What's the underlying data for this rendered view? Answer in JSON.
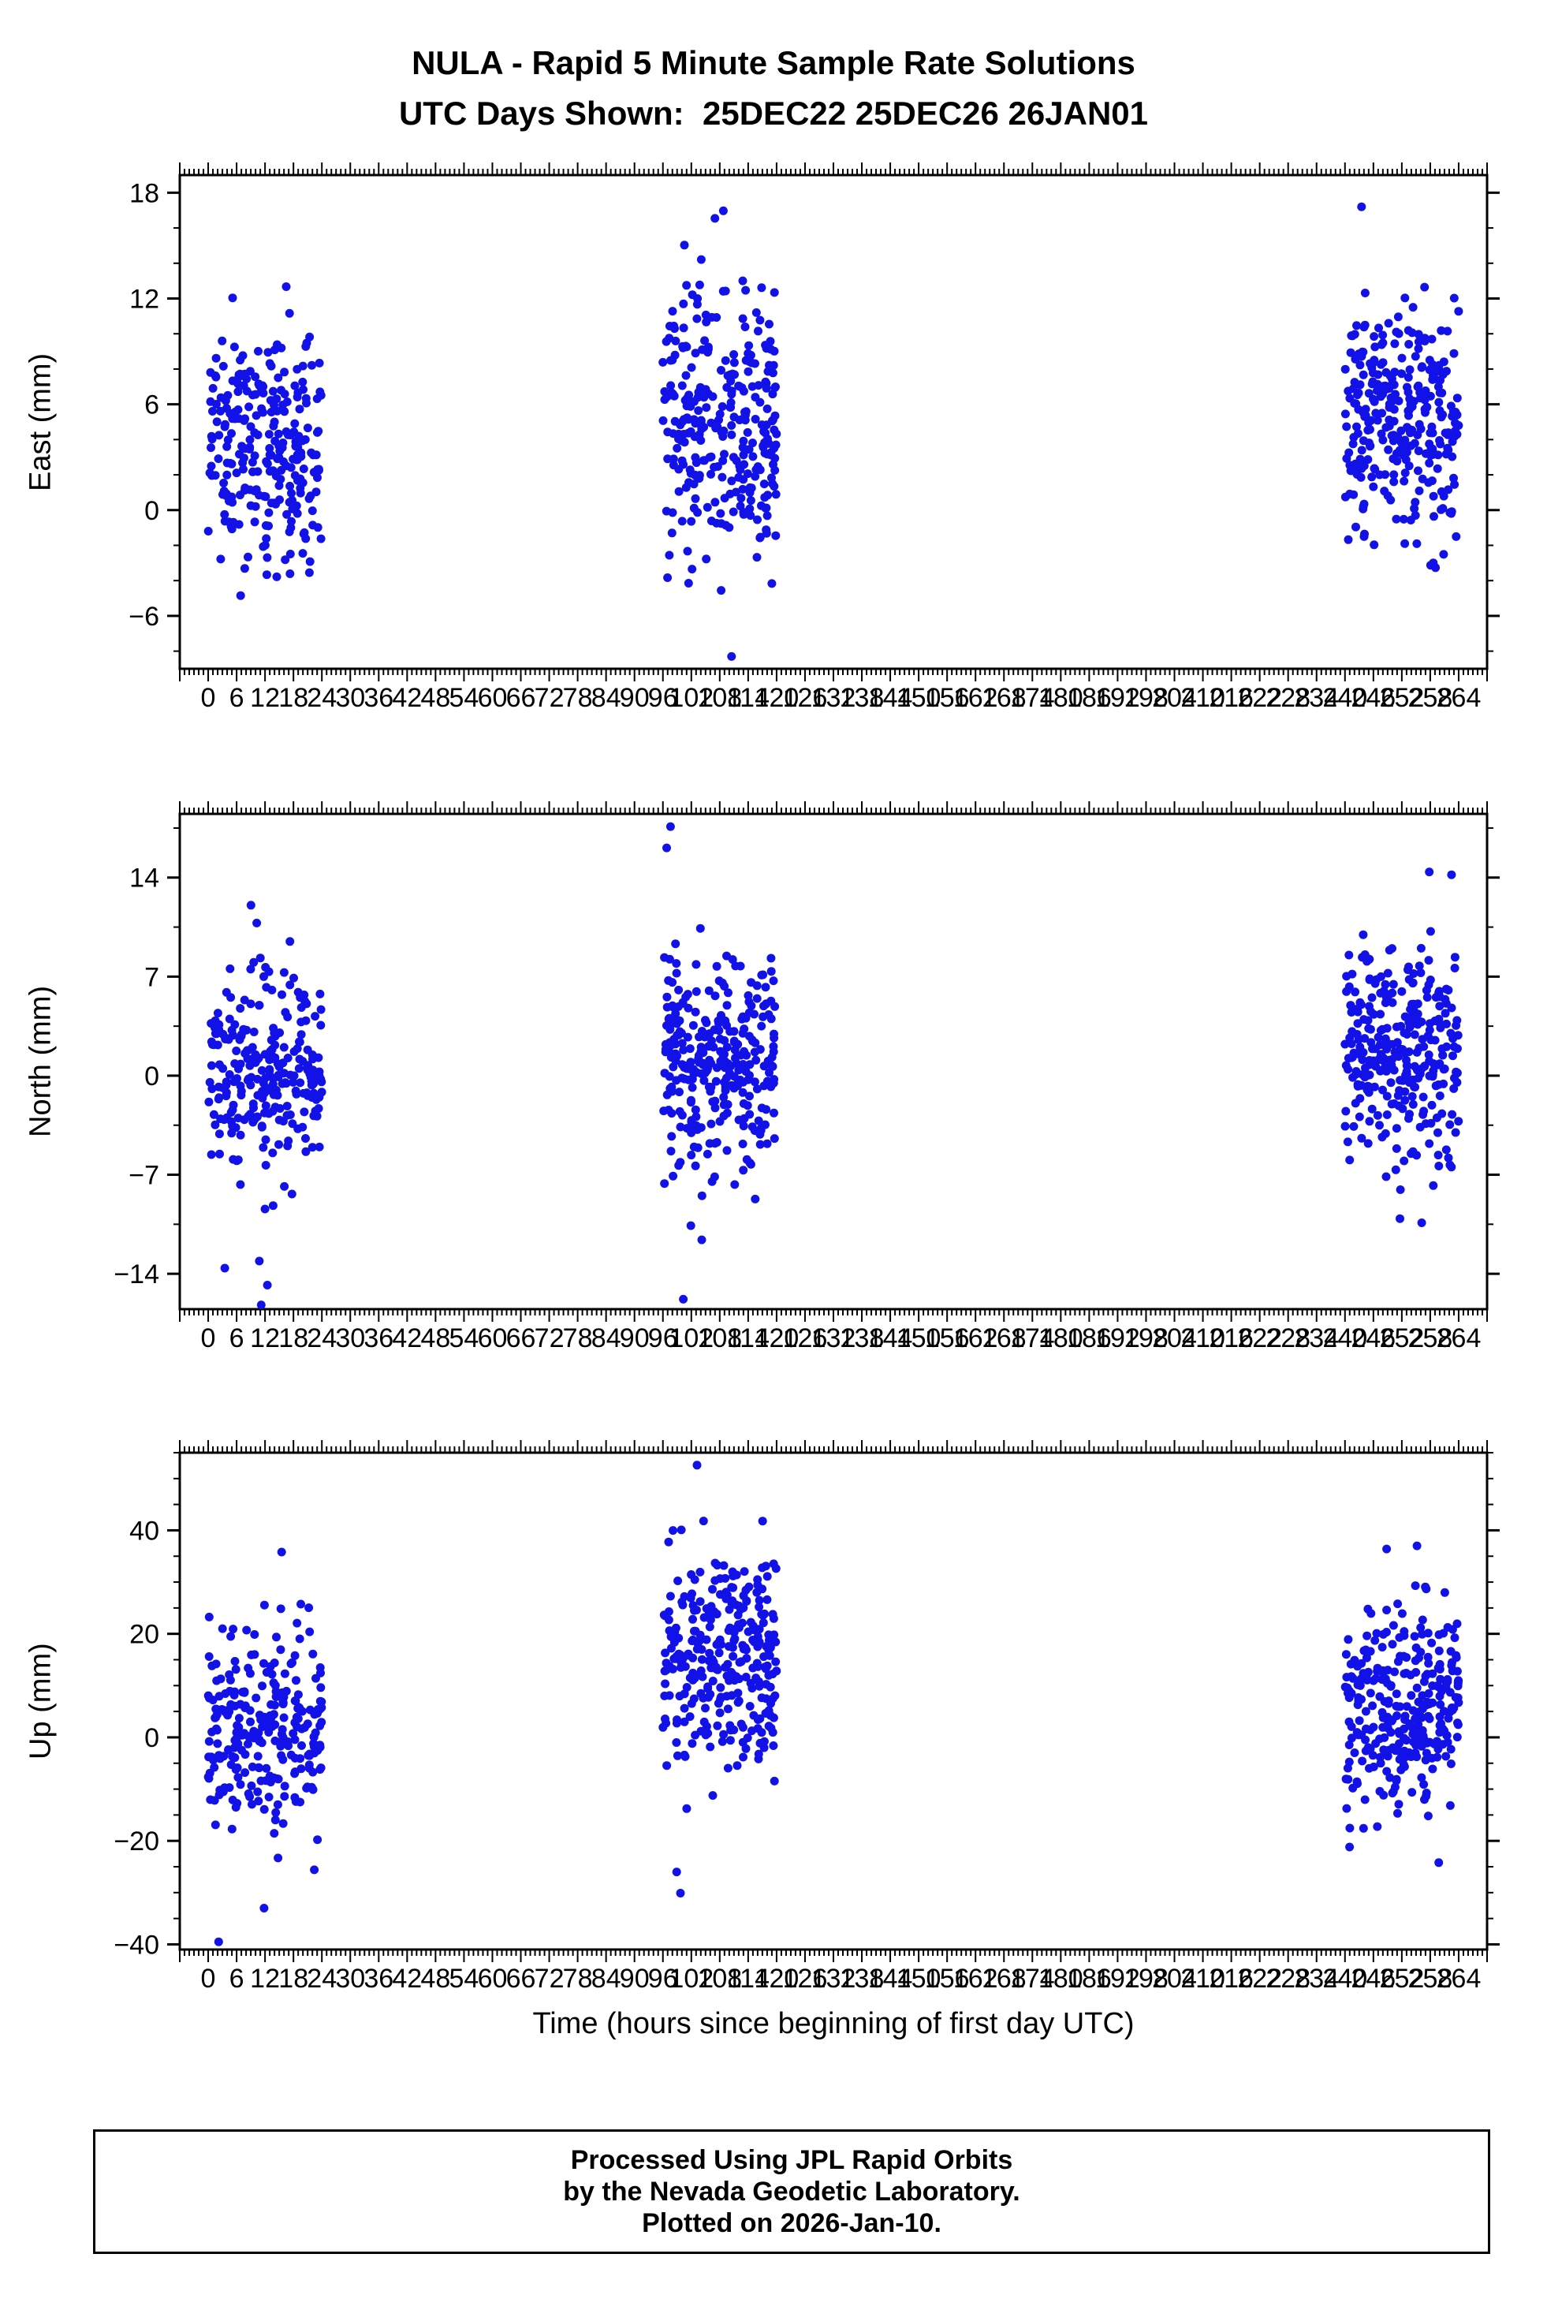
{
  "title": {
    "line1": "NULA - Rapid 5 Minute Sample Rate Solutions",
    "line2": "UTC Days Shown:  25DEC22 25DEC26 26JAN01"
  },
  "footer": {
    "line1": "Processed Using JPL Rapid Orbits",
    "line2": "by the Nevada Geodetic Laboratory.",
    "line3": "Plotted on 2026-Jan-10."
  },
  "chart_data": {
    "type": "scatter",
    "title": "NULA - Rapid 5 Minute Sample Rate Solutions",
    "subtitle": "UTC Days Shown: 25DEC22 25DEC26 26JAN01",
    "xlabel": "Time (hours since beginning of first day UTC)",
    "point_color": "#1212e8",
    "grid": false,
    "legend": "none",
    "xlim": [
      -6,
      270
    ],
    "x_minor_step": 1,
    "xticks": [
      0,
      6,
      12,
      18,
      24,
      30,
      36,
      42,
      48,
      54,
      60,
      66,
      72,
      78,
      84,
      90,
      96,
      102,
      108,
      114,
      120,
      126,
      132,
      138,
      144,
      150,
      156,
      162,
      168,
      174,
      180,
      186,
      192,
      198,
      204,
      210,
      216,
      222,
      228,
      234,
      240,
      246,
      252,
      258,
      264
    ],
    "day_windows_hours": [
      [
        0,
        24
      ],
      [
        96,
        120
      ],
      [
        240,
        264
      ]
    ],
    "subplots": [
      {
        "name": "east",
        "ylabel": "East (mm)",
        "ylim": [
          -9,
          19
        ],
        "yticks": [
          18,
          12,
          6,
          0,
          -6
        ],
        "y_minor_step": 2,
        "seed": 101,
        "clusters": [
          {
            "x": [
              0,
              24
            ],
            "n": 260,
            "mean": 3.8,
            "std": 3.2,
            "min": -6.5,
            "max": 13.0
          },
          {
            "x": [
              96,
              120
            ],
            "n": 300,
            "mean": 5.0,
            "std": 3.8,
            "min": -5.0,
            "max": 18.5
          },
          {
            "x": [
              240,
              264
            ],
            "n": 300,
            "mean": 5.0,
            "std": 3.4,
            "min": -4.6,
            "max": 12.8
          }
        ],
        "outliers": [
          [
            110.5,
            -8.3
          ],
          [
            243.5,
            17.2
          ]
        ]
      },
      {
        "name": "north",
        "ylabel": "North (mm)",
        "ylim": [
          -16.5,
          18.5
        ],
        "yticks": [
          14,
          7,
          0,
          -7,
          -14
        ],
        "y_minor_step": 3.5,
        "seed": 202,
        "clusters": [
          {
            "x": [
              0,
              24
            ],
            "n": 260,
            "mean": 0.3,
            "std": 3.8,
            "min": -10.0,
            "max": 13.3
          },
          {
            "x": [
              96,
              120
            ],
            "n": 300,
            "mean": 1.0,
            "std": 3.8,
            "min": -9.5,
            "max": 13.0
          },
          {
            "x": [
              240,
              264
            ],
            "n": 300,
            "mean": 1.5,
            "std": 3.6,
            "min": -8.2,
            "max": 11.0
          }
        ],
        "outliers": [
          [
            3.5,
            -13.6
          ],
          [
            10.8,
            -13.1
          ],
          [
            11.2,
            -16.2
          ],
          [
            12.5,
            -14.8
          ],
          [
            96.8,
            16.1
          ],
          [
            97.6,
            17.6
          ],
          [
            101.9,
            -10.6
          ],
          [
            104.2,
            -11.6
          ],
          [
            100.3,
            -15.8
          ],
          [
            257.8,
            14.4
          ],
          [
            251.6,
            -10.1
          ],
          [
            256.2,
            -10.4
          ],
          [
            262.5,
            14.2
          ]
        ]
      },
      {
        "name": "up",
        "ylabel": "Up (mm)",
        "ylim": [
          -41,
          55
        ],
        "yticks": [
          40,
          20,
          0,
          -20,
          -40
        ],
        "y_minor_step": 5,
        "seed": 303,
        "clusters": [
          {
            "x": [
              0,
              24
            ],
            "n": 260,
            "mean": 2,
            "std": 10,
            "min": -28,
            "max": 31
          },
          {
            "x": [
              96,
              120
            ],
            "n": 300,
            "mean": 15,
            "std": 11,
            "min": -18,
            "max": 42
          },
          {
            "x": [
              240,
              264
            ],
            "n": 300,
            "mean": 5,
            "std": 10,
            "min": -22,
            "max": 32
          }
        ],
        "outliers": [
          [
            2.2,
            -39.5
          ],
          [
            11.8,
            -33
          ],
          [
            15.5,
            35.8
          ],
          [
            103.2,
            52.6
          ],
          [
            99.7,
            -30.1
          ],
          [
            98.9,
            -26
          ],
          [
            248.8,
            36.4
          ],
          [
            255.2,
            37
          ],
          [
            259.8,
            -24.2
          ]
        ]
      }
    ]
  }
}
